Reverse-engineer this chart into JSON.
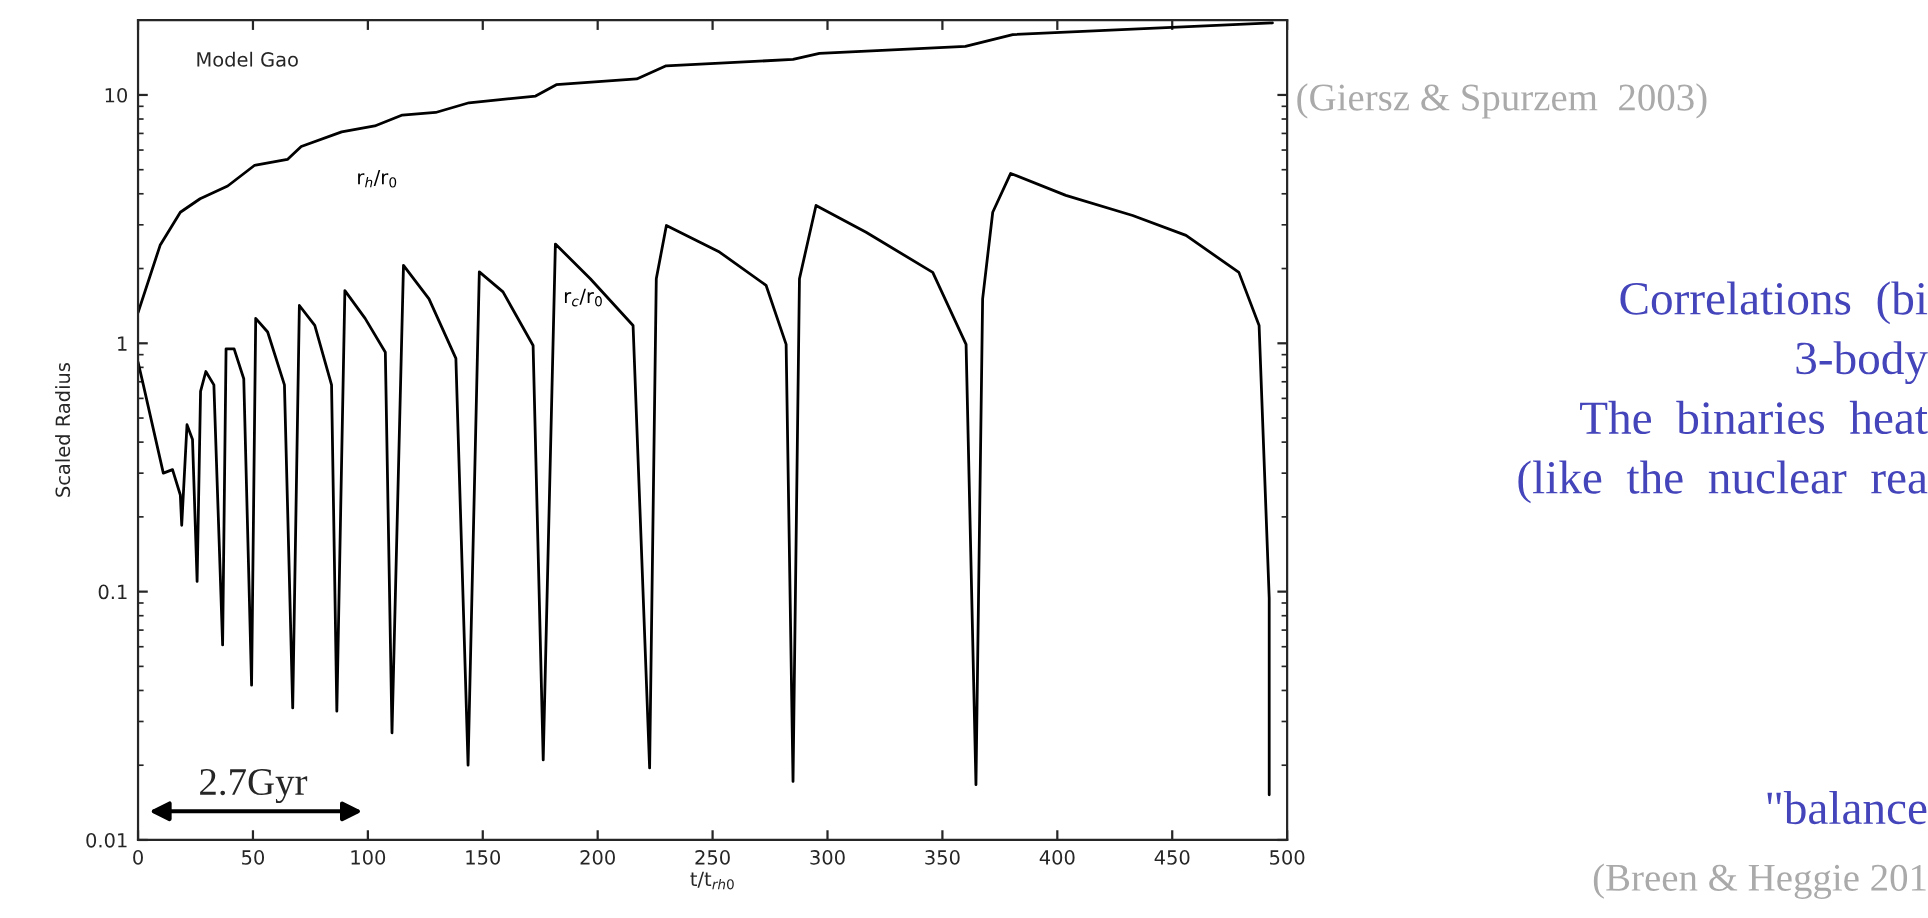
{
  "chart_data": {
    "type": "line",
    "xlabel": "t/t$_{rh0}$",
    "ylabel": "Scaled Radius",
    "log": "y",
    "xlim": [
      0,
      500
    ],
    "ylim": [
      0.01,
      20
    ],
    "xticks": [
      0,
      50,
      100,
      150,
      200,
      250,
      300,
      350,
      400,
      450,
      500
    ],
    "yticks": [
      0.01,
      0.1,
      1,
      10
    ],
    "grid": false,
    "legend": false,
    "marker": "none",
    "line_style": "solid",
    "series": [
      {
        "name": "r$_{h}$/r$_{0}$",
        "color": "#000000",
        "x": [
          0,
          9.6,
          18.4,
          27,
          39,
          50.6,
          65,
          71,
          88.6,
          103,
          115,
          129.5,
          144,
          173,
          182,
          217,
          229.8,
          285,
          296.5,
          360,
          380.6,
          493.6
        ],
        "values": [
          1.33,
          2.48,
          3.37,
          3.82,
          4.3,
          5.2,
          5.5,
          6.2,
          7.1,
          7.5,
          8.3,
          8.5,
          9.3,
          9.9,
          11.0,
          11.6,
          13.1,
          13.9,
          14.7,
          15.7,
          17.5,
          19.5
        ]
      },
      {
        "name": "r$_{c}$/r$_{0}$",
        "color": "#000000",
        "x": [
          0,
          2.3,
          11,
          15,
          18.4,
          19,
          21.3,
          23.7,
          25.7,
          27.2,
          29.5,
          33,
          36.8,
          38.3,
          41.8,
          46,
          49.4,
          51.2,
          56.4,
          63.7,
          67.3,
          70.2,
          76.9,
          84.2,
          86.5,
          90,
          98.8,
          107.6,
          110.5,
          115.5,
          126.6,
          138.3,
          143.6,
          148.5,
          158.8,
          171.9,
          176.3,
          181.6,
          196.8,
          215.4,
          222.6,
          225.5,
          229.9,
          253,
          273.3,
          282,
          285,
          287.8,
          295,
          316.8,
          345.8,
          360.3,
          364.6,
          367.5,
          371.9,
          379.7,
          403.7,
          432.8,
          456,
          479,
          487.8,
          492.2,
          492.2
        ],
        "values": [
          0.84,
          0.68,
          0.3,
          0.31,
          0.245,
          0.185,
          0.47,
          0.41,
          0.11,
          0.64,
          0.77,
          0.68,
          0.061,
          0.95,
          0.95,
          0.72,
          0.042,
          1.26,
          1.11,
          0.68,
          0.034,
          1.42,
          1.18,
          0.68,
          0.033,
          1.63,
          1.26,
          0.92,
          0.027,
          2.06,
          1.51,
          0.87,
          0.02,
          1.94,
          1.61,
          0.98,
          0.021,
          2.51,
          1.82,
          1.18,
          0.0195,
          1.82,
          2.98,
          2.33,
          1.71,
          0.99,
          0.0172,
          1.82,
          3.59,
          2.8,
          1.93,
          0.99,
          0.0167,
          1.51,
          3.37,
          4.83,
          3.94,
          3.27,
          2.72,
          1.93,
          1.18,
          0.094,
          0.0152
        ]
      }
    ],
    "annotations": [
      "Model Gao",
      "2.7Gyr",
      "(Giersz & Spurzem  2003)",
      "Correlations  (bi",
      "3-body",
      "The  binaries  heat",
      "(like  the  nuclear  rea",
      "\"balance",
      "(Breen & Heggie 201"
    ]
  }
}
